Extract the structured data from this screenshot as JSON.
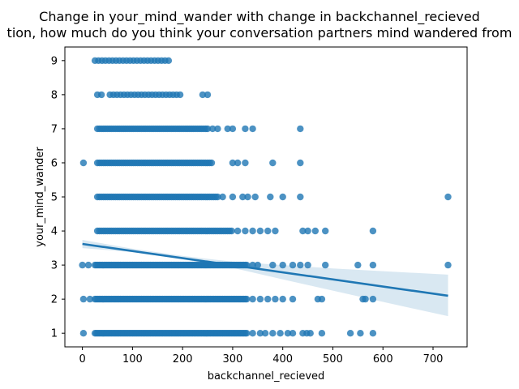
{
  "chart_data": {
    "type": "scatter",
    "title_line1": "Change in your_mind_wander with change in backchannel_recieved",
    "title_line2": "tion, how much do you think your conversation partners mind wandered from",
    "xlabel": "backchannel_recieved",
    "ylabel": "your_mind_wander",
    "xlim": [
      -35,
      768
    ],
    "ylim": [
      0.6,
      9.4
    ],
    "x_ticks": [
      0,
      100,
      200,
      300,
      400,
      500,
      600,
      700
    ],
    "y_ticks": [
      1,
      2,
      3,
      4,
      5,
      6,
      7,
      8,
      9
    ],
    "grid": false,
    "point_color": "#1f77b4",
    "dense_ranges": [
      {
        "y": 1,
        "x_min": 25,
        "x_max": 330
      },
      {
        "y": 2,
        "x_min": 25,
        "x_max": 330
      },
      {
        "y": 3,
        "x_min": 25,
        "x_max": 330
      },
      {
        "y": 4,
        "x_min": 30,
        "x_max": 300
      },
      {
        "y": 5,
        "x_min": 30,
        "x_max": 270
      },
      {
        "y": 6,
        "x_min": 30,
        "x_max": 260
      },
      {
        "y": 7,
        "x_min": 30,
        "x_max": 250
      },
      {
        "y": 8,
        "x_min": 55,
        "x_max": 200
      },
      {
        "y": 9,
        "x_min": 25,
        "x_max": 175
      }
    ],
    "sparse_points": [
      {
        "x": 2,
        "y": 6
      },
      {
        "x": 2,
        "y": 2
      },
      {
        "x": 2,
        "y": 1
      },
      {
        "x": 0,
        "y": 3
      },
      {
        "x": 12,
        "y": 3
      },
      {
        "x": 15,
        "y": 2
      },
      {
        "x": 340,
        "y": 1
      },
      {
        "x": 355,
        "y": 1
      },
      {
        "x": 365,
        "y": 1
      },
      {
        "x": 380,
        "y": 1
      },
      {
        "x": 395,
        "y": 1
      },
      {
        "x": 410,
        "y": 1
      },
      {
        "x": 420,
        "y": 1
      },
      {
        "x": 440,
        "y": 1
      },
      {
        "x": 448,
        "y": 1
      },
      {
        "x": 455,
        "y": 1
      },
      {
        "x": 478,
        "y": 1
      },
      {
        "x": 535,
        "y": 1
      },
      {
        "x": 555,
        "y": 1
      },
      {
        "x": 580,
        "y": 1
      },
      {
        "x": 340,
        "y": 2
      },
      {
        "x": 355,
        "y": 2
      },
      {
        "x": 370,
        "y": 2
      },
      {
        "x": 385,
        "y": 2
      },
      {
        "x": 400,
        "y": 2
      },
      {
        "x": 420,
        "y": 2
      },
      {
        "x": 470,
        "y": 2
      },
      {
        "x": 478,
        "y": 2
      },
      {
        "x": 560,
        "y": 2
      },
      {
        "x": 565,
        "y": 2
      },
      {
        "x": 580,
        "y": 2
      },
      {
        "x": 340,
        "y": 3
      },
      {
        "x": 350,
        "y": 3
      },
      {
        "x": 380,
        "y": 3
      },
      {
        "x": 400,
        "y": 3
      },
      {
        "x": 420,
        "y": 3
      },
      {
        "x": 435,
        "y": 3
      },
      {
        "x": 450,
        "y": 3
      },
      {
        "x": 485,
        "y": 3
      },
      {
        "x": 550,
        "y": 3
      },
      {
        "x": 580,
        "y": 3
      },
      {
        "x": 730,
        "y": 3
      },
      {
        "x": 310,
        "y": 4
      },
      {
        "x": 325,
        "y": 4
      },
      {
        "x": 340,
        "y": 4
      },
      {
        "x": 355,
        "y": 4
      },
      {
        "x": 370,
        "y": 4
      },
      {
        "x": 385,
        "y": 4
      },
      {
        "x": 440,
        "y": 4
      },
      {
        "x": 450,
        "y": 4
      },
      {
        "x": 465,
        "y": 4
      },
      {
        "x": 485,
        "y": 4
      },
      {
        "x": 580,
        "y": 4
      },
      {
        "x": 280,
        "y": 5
      },
      {
        "x": 300,
        "y": 5
      },
      {
        "x": 320,
        "y": 5
      },
      {
        "x": 330,
        "y": 5
      },
      {
        "x": 345,
        "y": 5
      },
      {
        "x": 375,
        "y": 5
      },
      {
        "x": 400,
        "y": 5
      },
      {
        "x": 435,
        "y": 5
      },
      {
        "x": 730,
        "y": 5
      },
      {
        "x": 300,
        "y": 6
      },
      {
        "x": 310,
        "y": 6
      },
      {
        "x": 325,
        "y": 6
      },
      {
        "x": 380,
        "y": 6
      },
      {
        "x": 435,
        "y": 6
      },
      {
        "x": 260,
        "y": 7
      },
      {
        "x": 270,
        "y": 7
      },
      {
        "x": 290,
        "y": 7
      },
      {
        "x": 300,
        "y": 7
      },
      {
        "x": 325,
        "y": 7
      },
      {
        "x": 340,
        "y": 7
      },
      {
        "x": 435,
        "y": 7
      },
      {
        "x": 240,
        "y": 8
      },
      {
        "x": 250,
        "y": 8
      },
      {
        "x": 30,
        "y": 8
      },
      {
        "x": 38,
        "y": 8
      }
    ],
    "regression": {
      "x_start": 0,
      "y_start": 3.62,
      "x_end": 730,
      "y_end": 2.1
    },
    "confidence_band": [
      {
        "x": 0,
        "lo": 3.5,
        "hi": 3.74
      },
      {
        "x": 100,
        "lo": 3.38,
        "hi": 3.48
      },
      {
        "x": 200,
        "lo": 3.17,
        "hi": 3.27
      },
      {
        "x": 300,
        "lo": 2.92,
        "hi": 3.1
      },
      {
        "x": 400,
        "lo": 2.58,
        "hi": 3.0
      },
      {
        "x": 500,
        "lo": 2.25,
        "hi": 2.9
      },
      {
        "x": 600,
        "lo": 1.92,
        "hi": 2.82
      },
      {
        "x": 730,
        "lo": 1.5,
        "hi": 2.72
      }
    ]
  }
}
